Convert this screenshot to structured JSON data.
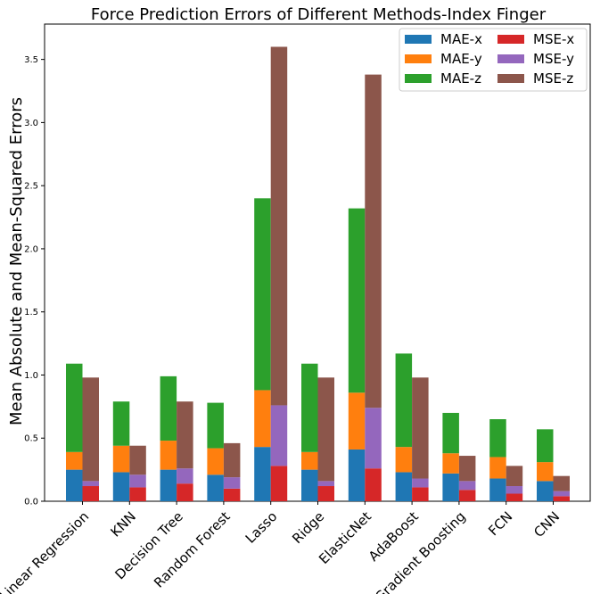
{
  "chart_data": {
    "type": "bar",
    "title": "Force Prediction Errors of Different Methods-Index Finger",
    "xlabel": "",
    "ylabel": "Mean Absolute and Mean-Squared Errors",
    "ylim": [
      0,
      3.78
    ],
    "yticks": [
      "0.0",
      "0.5",
      "1.0",
      "1.5",
      "2.0",
      "2.5",
      "3.0",
      "3.5"
    ],
    "stacked": true,
    "grouped": true,
    "legend_position": "top-right",
    "categories": [
      "Linear Regression",
      "KNN",
      "Decision Tree",
      "Random Forest",
      "Lasso",
      "Ridge",
      "ElasticNet",
      "AdaBoost",
      "Gradient Boosting",
      "FCN",
      "CNN"
    ],
    "groups": [
      {
        "group": "MAE",
        "series": [
          {
            "name": "MAE-x",
            "color": "#1f77b4",
            "values": [
              0.25,
              0.23,
              0.25,
              0.21,
              0.43,
              0.25,
              0.41,
              0.23,
              0.22,
              0.18,
              0.16
            ]
          },
          {
            "name": "MAE-y",
            "color": "#ff7f0e",
            "values": [
              0.14,
              0.21,
              0.23,
              0.21,
              0.45,
              0.14,
              0.45,
              0.2,
              0.16,
              0.17,
              0.15
            ]
          },
          {
            "name": "MAE-z",
            "color": "#2ca02c",
            "values": [
              0.7,
              0.35,
              0.51,
              0.36,
              1.52,
              0.7,
              1.46,
              0.74,
              0.32,
              0.3,
              0.26
            ]
          }
        ]
      },
      {
        "group": "MSE",
        "series": [
          {
            "name": "MSE-x",
            "color": "#d62728",
            "values": [
              0.12,
              0.11,
              0.14,
              0.1,
              0.28,
              0.12,
              0.26,
              0.11,
              0.09,
              0.06,
              0.04
            ]
          },
          {
            "name": "MSE-y",
            "color": "#9467bd",
            "values": [
              0.04,
              0.1,
              0.12,
              0.09,
              0.48,
              0.04,
              0.48,
              0.07,
              0.07,
              0.06,
              0.04
            ]
          },
          {
            "name": "MSE-z",
            "color": "#8c564b",
            "values": [
              0.82,
              0.23,
              0.53,
              0.27,
              2.84,
              0.82,
              2.64,
              0.8,
              0.2,
              0.16,
              0.12
            ]
          }
        ]
      }
    ],
    "legend": [
      "MAE-x",
      "MSE-x",
      "MAE-y",
      "MSE-y",
      "MAE-z",
      "MSE-z"
    ]
  }
}
